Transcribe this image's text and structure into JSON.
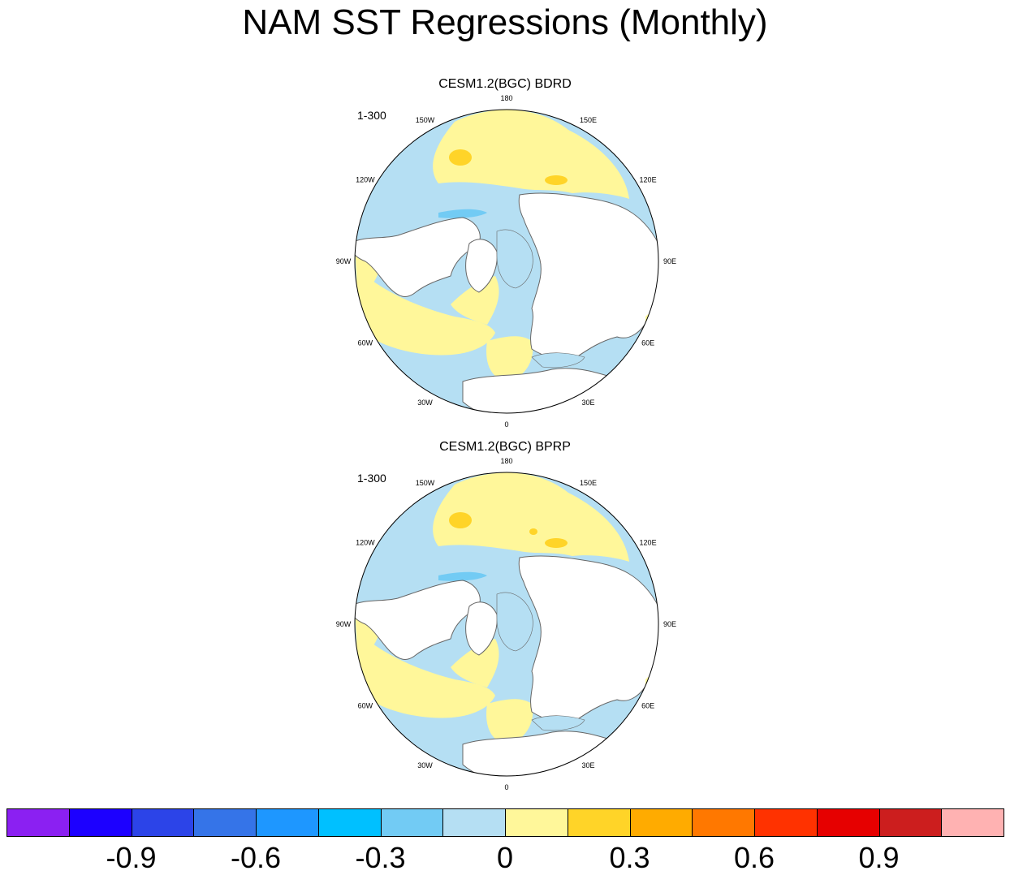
{
  "title": "NAM SST Regressions (Monthly)",
  "panels": [
    {
      "title": "CESM1.2(BGC) BDRD",
      "period": "1-300"
    },
    {
      "title": "CESM1.2(BGC) BPRP",
      "period": "1-300"
    }
  ],
  "lon_labels": [
    "180",
    "150E",
    "120E",
    "90E",
    "60E",
    "30E",
    "0",
    "30W",
    "60W",
    "90W",
    "120W",
    "150W"
  ],
  "colorbar": {
    "colors": [
      "#8B20F2",
      "#1C00FF",
      "#2C44E8",
      "#3574E8",
      "#1E97FF",
      "#00C0FF",
      "#72CBF4",
      "#B5DFF3",
      "#FFF79A",
      "#FFD428",
      "#FFAB00",
      "#FF7800",
      "#FF3200",
      "#E60000",
      "#CC1E1E",
      "#FFB2B2"
    ],
    "tick_labels": [
      "-0.9",
      "-0.6",
      "-0.3",
      "0",
      "0.3",
      "0.6",
      "0.9"
    ]
  },
  "palette": {
    "land": "#ffffff",
    "coast": "#666666",
    "neg_weak": "#B5DFF3",
    "neg_mod": "#72CBF4",
    "pos_weak": "#FFF79A",
    "pos_mod": "#FFD428"
  }
}
